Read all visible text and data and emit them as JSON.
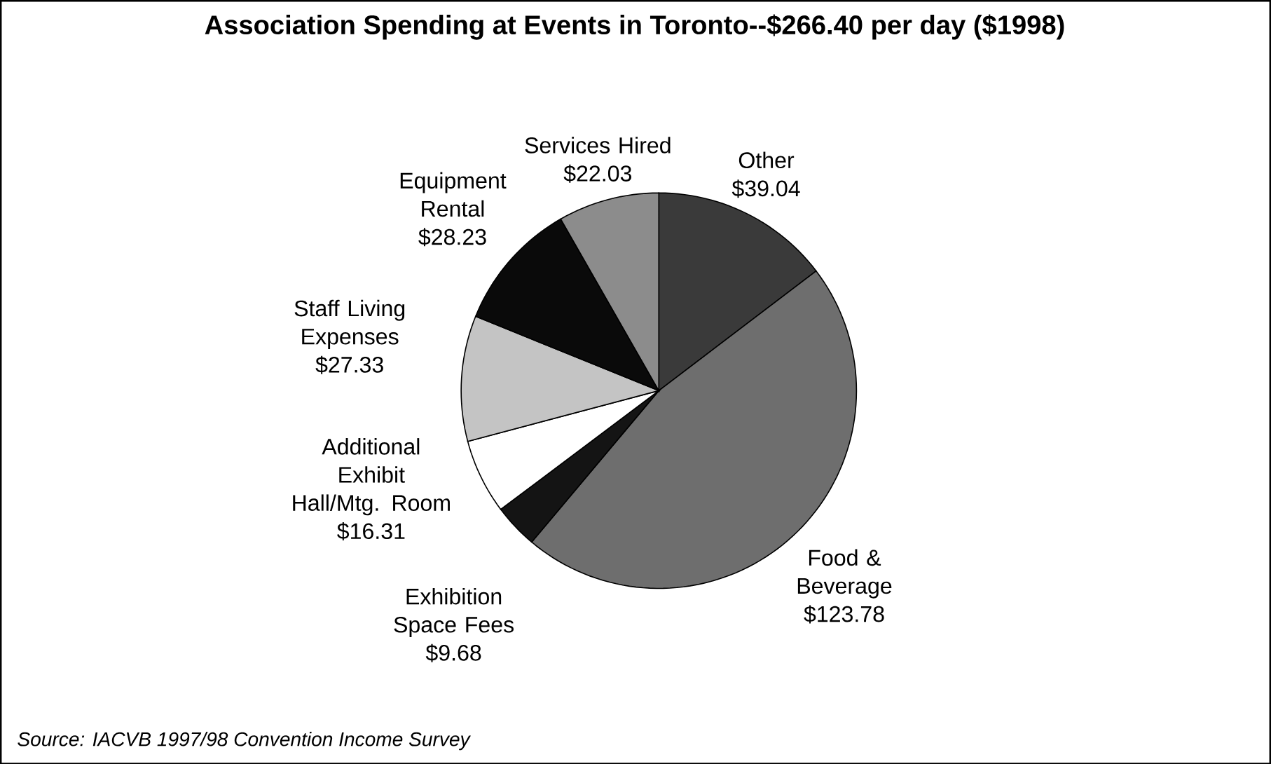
{
  "chart_data": {
    "type": "pie",
    "title": "Association Spending at Events in Toronto--$266.40 per day ($1998)",
    "categories": [
      "Other",
      "Food & Beverage",
      "Exhibition Space Fees",
      "Additional Exhibit Hall/Mtg. Room",
      "Staff Living Expenses",
      "Equipment Rental",
      "Services Hired"
    ],
    "values": [
      39.04,
      123.78,
      9.68,
      16.31,
      27.33,
      28.23,
      22.03
    ],
    "value_labels": [
      "$39.04",
      "$123.78",
      "$9.68",
      "$16.31",
      "$27.33",
      "$28.23",
      "$22.03"
    ],
    "colors": [
      "#3a3a3a",
      "#6e6e6e",
      "#141414",
      "#ffffff",
      "#c4c4c4",
      "#0a0a0a",
      "#8c8c8c"
    ],
    "annotations": [
      "Source:  IACVB 1997/98 Convention Income Survey"
    ]
  }
}
